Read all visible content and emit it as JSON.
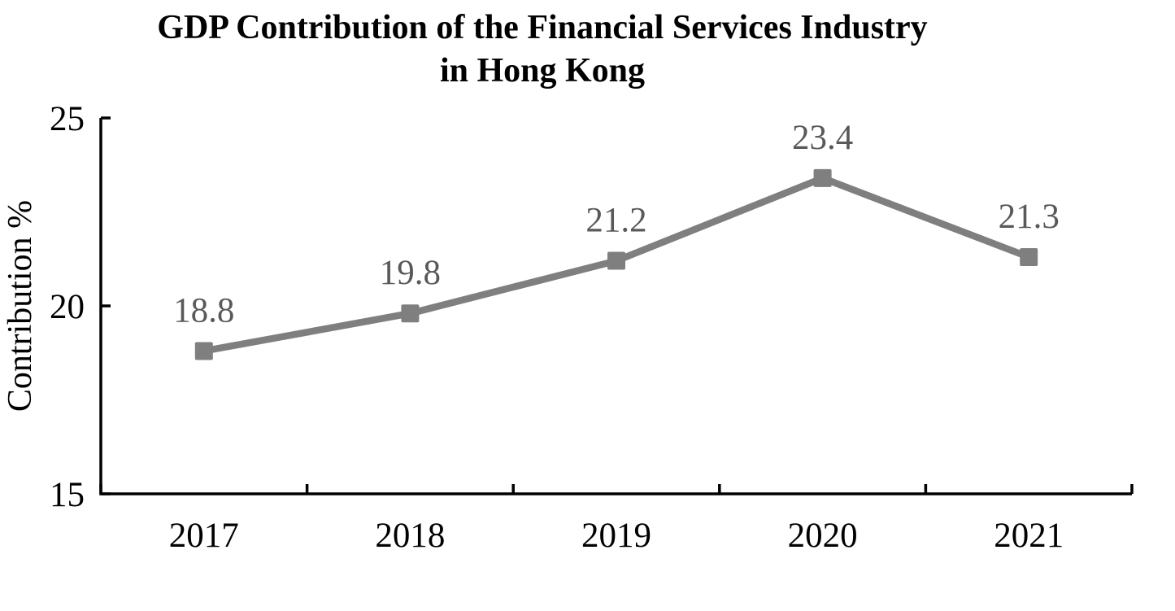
{
  "chart_data": {
    "type": "line",
    "title_lines": [
      "GDP Contribution of the Financial Services Industry",
      "in Hong Kong"
    ],
    "categories": [
      "2017",
      "2018",
      "2019",
      "2020",
      "2021"
    ],
    "series": [
      {
        "name": "GDP contribution",
        "values": [
          18.8,
          19.8,
          21.2,
          23.4,
          21.3
        ]
      }
    ],
    "data_labels": [
      "18.8",
      "19.8",
      "21.2",
      "23.4",
      "21.3"
    ],
    "xlabel": "",
    "ylabel": "Contribution %",
    "ylim": [
      15,
      25
    ],
    "yticks": [
      15,
      20,
      25
    ],
    "grid": false,
    "legend": "none",
    "marker": "square",
    "colors": {
      "series": "#7f7f7f",
      "data_label": "#595959",
      "axis": "#000000",
      "tick_label": "#000000",
      "title": "#000000",
      "background": "#ffffff"
    }
  }
}
